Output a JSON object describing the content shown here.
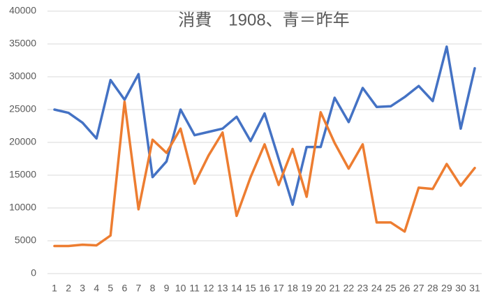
{
  "chart_data": {
    "type": "line",
    "title": "消費　1908、青＝昨年",
    "categories": [
      "1",
      "2",
      "3",
      "4",
      "5",
      "6",
      "7",
      "8",
      "9",
      "10",
      "11",
      "12",
      "13",
      "14",
      "15",
      "16",
      "17",
      "18",
      "19",
      "20",
      "21",
      "22",
      "23",
      "24",
      "25",
      "26",
      "27",
      "28",
      "29",
      "30",
      "31"
    ],
    "series": [
      {
        "color": "#4472c4",
        "values": [
          25000,
          24500,
          23000,
          20600,
          29500,
          26500,
          30400,
          14700,
          17100,
          25000,
          21100,
          21600,
          22100,
          23900,
          20200,
          24400,
          17500,
          10500,
          19300,
          19300,
          26800,
          23100,
          28300,
          25400,
          25500,
          26900,
          28600,
          26300,
          34600,
          22100,
          31300
        ]
      },
      {
        "color": "#ed7d31",
        "values": [
          4200,
          4200,
          4400,
          4300,
          5800,
          26200,
          9800,
          20400,
          18400,
          22100,
          13700,
          18000,
          21500,
          8800,
          14700,
          19700,
          13500,
          19000,
          11700,
          24600,
          19900,
          16000,
          19700,
          7800,
          7800,
          6400,
          13100,
          12900,
          16700,
          13400,
          16100
        ]
      }
    ],
    "ylim": [
      0,
      40000
    ],
    "yticks": [
      0,
      5000,
      10000,
      15000,
      20000,
      25000,
      30000,
      35000,
      40000
    ],
    "grid": true
  }
}
